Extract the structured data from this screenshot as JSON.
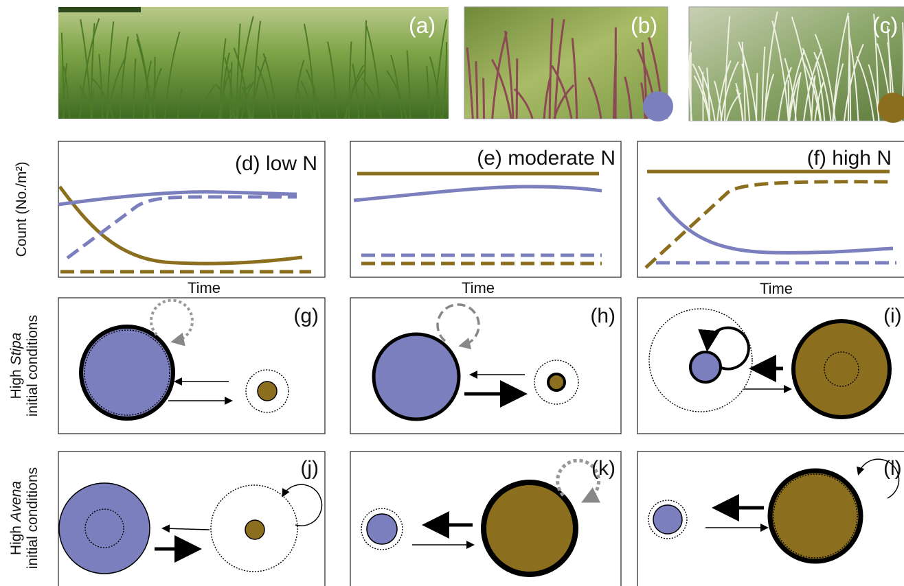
{
  "photos": [
    "(a)",
    "(b)",
    "(c)"
  ],
  "plots": {
    "y_label": "Count (No./m²)",
    "panels": [
      {
        "label": "(d) low N",
        "x_label": "Time"
      },
      {
        "label": "(e) moderate N",
        "x_label": "Time"
      },
      {
        "label": "(f) high N",
        "x_label": "Time"
      }
    ]
  },
  "diagrams": {
    "rows": [
      {
        "label": [
          "High ",
          "Stipa"
        ],
        "label_line2": "initial conditions",
        "panels": [
          "(g)",
          "(h)",
          "(i)"
        ]
      },
      {
        "label": [
          "High ",
          "Avena"
        ],
        "label_line2": "initial conditions",
        "panels": [
          "(j)",
          "(k)",
          "(l)"
        ]
      }
    ]
  }
}
